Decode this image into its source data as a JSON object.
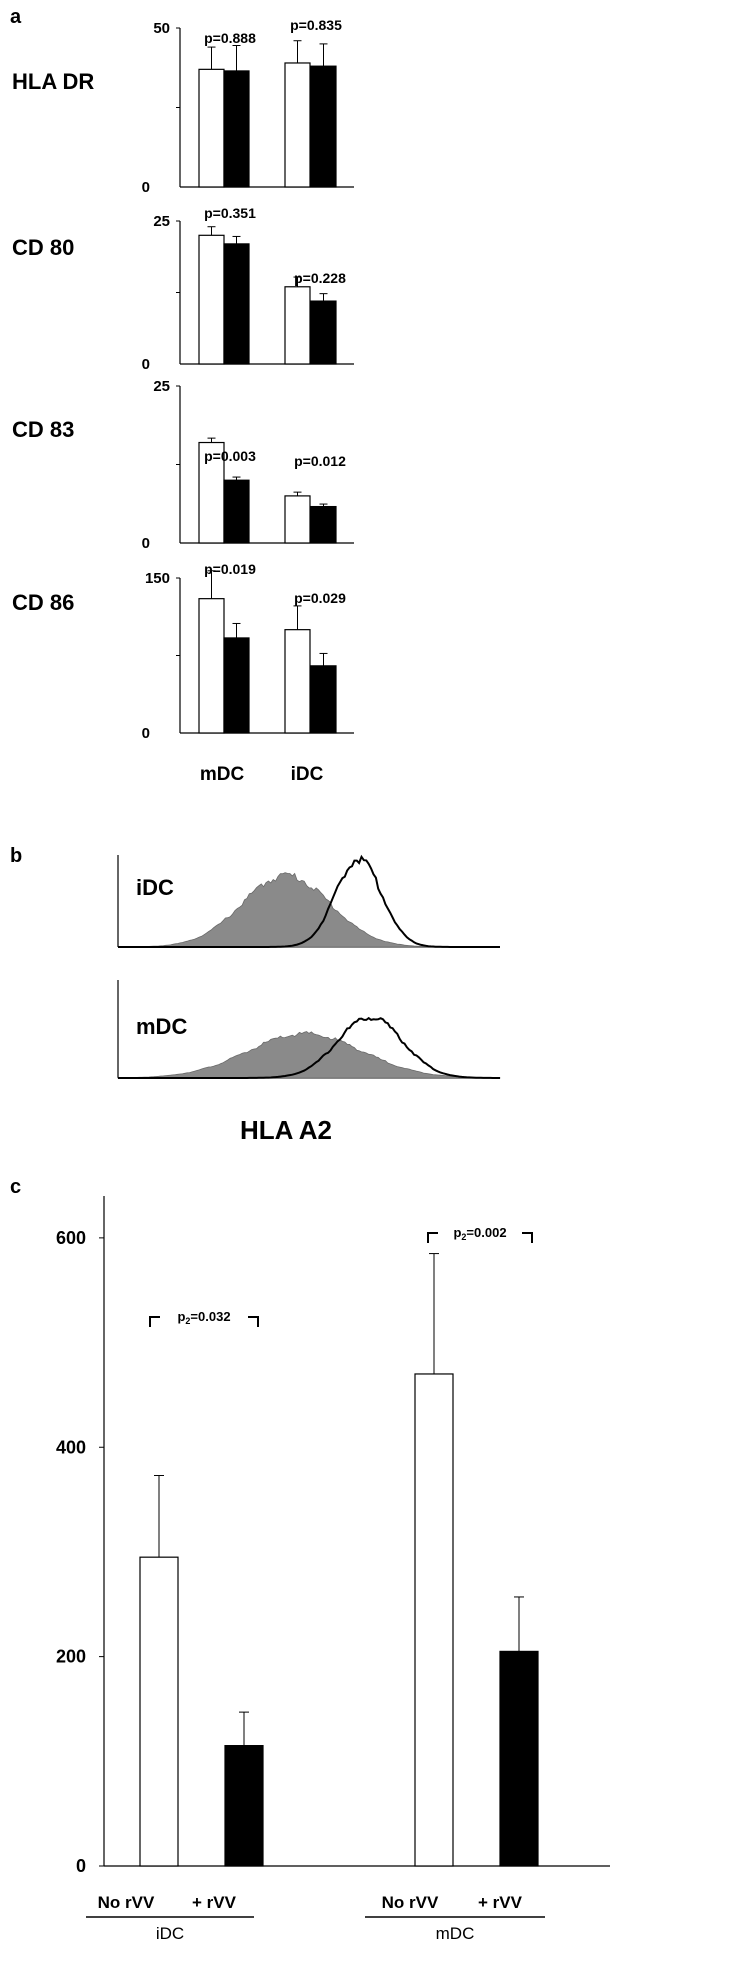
{
  "colors": {
    "open_bar": "#ffffff",
    "filled_bar": "#000000",
    "hist_fill": "#8a8a8a",
    "axis": "#000000"
  },
  "panel_a": {
    "letter": "a",
    "x_categories": [
      "mDC",
      "iDC"
    ],
    "chart_data": [
      {
        "type": "bar",
        "row_label": "HLA DR",
        "categories": [
          "mDC",
          "iDC"
        ],
        "series": [
          {
            "values": [
              37,
              39
            ],
            "errors": [
              7,
              7
            ]
          },
          {
            "values": [
              36.5,
              38
            ],
            "errors": [
              8,
              7
            ]
          }
        ],
        "ylim": [
          0,
          50
        ],
        "yticks": [
          "50",
          "0"
        ],
        "pvalues": [
          "p=0.888",
          "p=0.835"
        ]
      },
      {
        "type": "bar",
        "row_label": "CD 80",
        "categories": [
          "mDC",
          "iDC"
        ],
        "series": [
          {
            "values": [
              22.5,
              13.5
            ],
            "errors": [
              1.5,
              1.7
            ]
          },
          {
            "values": [
              21,
              11
            ],
            "errors": [
              1.3,
              1.3
            ]
          }
        ],
        "ylim": [
          0,
          25
        ],
        "yticks": [
          "25",
          "0"
        ],
        "pvalues": [
          "p=0.351",
          "p=0.228"
        ]
      },
      {
        "type": "bar",
        "row_label": "CD 83",
        "categories": [
          "mDC",
          "iDC"
        ],
        "series": [
          {
            "values": [
              16,
              7.5
            ],
            "errors": [
              0.7,
              0.6
            ]
          },
          {
            "values": [
              10,
              5.8
            ],
            "errors": [
              0.5,
              0.4
            ]
          }
        ],
        "ylim": [
          0,
          25
        ],
        "yticks": [
          "25",
          "0"
        ],
        "pvalues": [
          "p=0.003",
          "p=0.012"
        ]
      },
      {
        "type": "bar",
        "row_label": "CD 86",
        "categories": [
          "mDC",
          "iDC"
        ],
        "series": [
          {
            "values": [
              130,
              100
            ],
            "errors": [
              27,
              23
            ]
          },
          {
            "values": [
              92,
              65
            ],
            "errors": [
              14,
              12
            ]
          }
        ],
        "ylim": [
          0,
          150
        ],
        "yticks": [
          "150",
          "0"
        ],
        "pvalues": [
          "p=0.019",
          "p=0.029"
        ]
      }
    ]
  },
  "panel_b": {
    "letter": "b",
    "xlabel": "HLA A2",
    "histograms": [
      {
        "label": "iDC",
        "filled": {
          "center": 0.44,
          "spread": 0.115,
          "height": 0.78
        },
        "line": {
          "center": 0.63,
          "spread": 0.06,
          "height": 0.96
        }
      },
      {
        "label": "mDC",
        "filled": {
          "center": 0.49,
          "spread": 0.15,
          "height": 0.45
        },
        "line": {
          "center": 0.66,
          "spread": 0.085,
          "height": 0.62
        }
      }
    ]
  },
  "panel_c": {
    "letter": "c",
    "chart_data": {
      "type": "bar",
      "categories": [
        "No rVV",
        "+ rVV",
        "No rVV",
        "+ rVV"
      ],
      "groups": [
        "iDC",
        "mDC"
      ],
      "values": [
        295,
        115,
        470,
        205
      ],
      "errors": [
        78,
        32,
        115,
        52
      ],
      "ylim": [
        0,
        640
      ],
      "yticks": [
        0,
        200,
        400,
        600
      ],
      "pvalues": [
        {
          "prefix": "p",
          "sub": "2",
          "value": "=0.032"
        },
        {
          "prefix": "p",
          "sub": "2",
          "value": "=0.002"
        }
      ]
    }
  }
}
